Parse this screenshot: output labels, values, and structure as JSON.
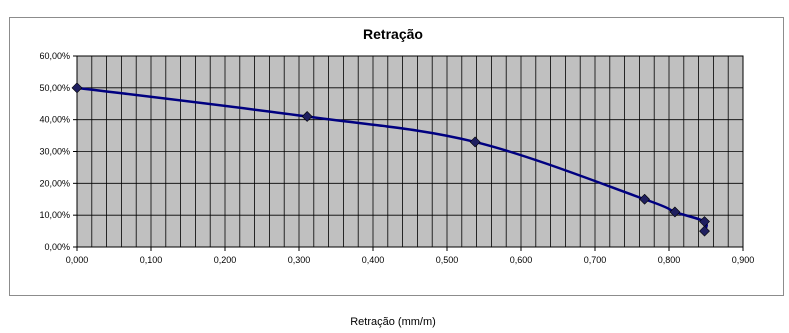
{
  "chart_data": {
    "type": "line",
    "title": "Retração",
    "xlabel": "Retração (mm/m)",
    "ylabel": "",
    "xlim": [
      0,
      0.9
    ],
    "ylim": [
      0,
      0.6
    ],
    "x_ticks": [
      "0,000",
      "0,100",
      "0,200",
      "0,300",
      "0,400",
      "0,500",
      "0,600",
      "0,700",
      "0,800",
      "0,900"
    ],
    "y_ticks": [
      "0,00%",
      "10,00%",
      "20,00%",
      "30,00%",
      "40,00%",
      "50,00%",
      "60,00%"
    ],
    "grid": true,
    "smooth": true,
    "series": [
      {
        "x": [
          0.0,
          0.311,
          0.538,
          0.767,
          0.808,
          0.848,
          0.848
        ],
        "y": [
          0.5,
          0.41,
          0.33,
          0.15,
          0.11,
          0.08,
          0.05
        ]
      }
    ],
    "colors": {
      "plot_background": "#c0c0c0",
      "grid": "#000000",
      "line": "#000080",
      "marker": "#1f1f5f"
    }
  }
}
